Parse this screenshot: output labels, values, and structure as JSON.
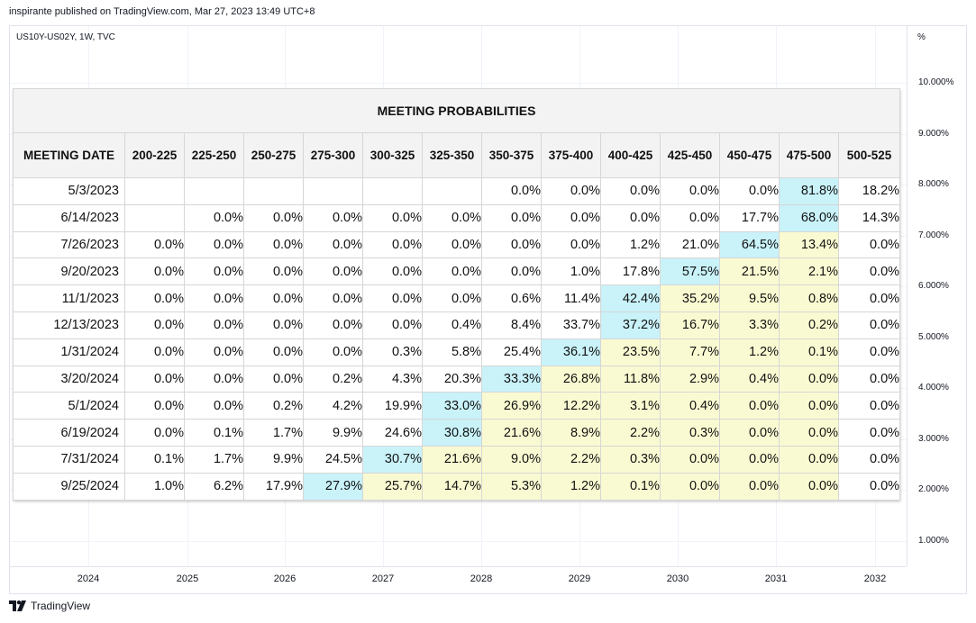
{
  "header": {
    "published_text": "inspirante published on TradingView.com, Mar 27, 2023 13:49 UTC+8"
  },
  "chart": {
    "symbol_text": "US10Y-US02Y, 1W, TVC",
    "y_unit": "%",
    "y_ticks": [
      "10.000%",
      "9.000%",
      "8.000%",
      "7.000%",
      "6.000%",
      "5.000%",
      "4.000%",
      "3.000%",
      "2.000%",
      "1.000%"
    ],
    "x_ticks": [
      "2024",
      "2025",
      "2026",
      "2027",
      "2028",
      "2029",
      "2030",
      "2031",
      "2032"
    ]
  },
  "footer": {
    "logo_text": "TradingView"
  },
  "table": {
    "title": "MEETING PROBABILITIES",
    "first_header": "MEETING DATE",
    "rate_headers": [
      "200-225",
      "225-250",
      "250-275",
      "275-300",
      "300-325",
      "325-350",
      "350-375",
      "375-400",
      "400-425",
      "425-450",
      "450-475",
      "475-500",
      "500-525"
    ],
    "colors": {
      "highest": "#c9f2f9",
      "secondary": "#fafad2"
    },
    "rows": [
      {
        "date": "5/3/2023",
        "values": [
          "",
          "",
          "",
          "",
          "",
          "",
          "0.0%",
          "0.0%",
          "0.0%",
          "0.0%",
          "0.0%",
          "81.8%",
          "18.2%"
        ],
        "shade": [
          "",
          "",
          "",
          "",
          "",
          "",
          "",
          "",
          "",
          "",
          "",
          "hi",
          ""
        ]
      },
      {
        "date": "6/14/2023",
        "values": [
          "",
          "0.0%",
          "0.0%",
          "0.0%",
          "0.0%",
          "0.0%",
          "0.0%",
          "0.0%",
          "0.0%",
          "0.0%",
          "17.7%",
          "68.0%",
          "14.3%"
        ],
        "shade": [
          "",
          "",
          "",
          "",
          "",
          "",
          "",
          "",
          "",
          "",
          "",
          "hi",
          ""
        ]
      },
      {
        "date": "7/26/2023",
        "values": [
          "0.0%",
          "0.0%",
          "0.0%",
          "0.0%",
          "0.0%",
          "0.0%",
          "0.0%",
          "0.0%",
          "1.2%",
          "21.0%",
          "64.5%",
          "13.4%",
          "0.0%"
        ],
        "shade": [
          "",
          "",
          "",
          "",
          "",
          "",
          "",
          "",
          "",
          "",
          "hi",
          "lo",
          ""
        ]
      },
      {
        "date": "9/20/2023",
        "values": [
          "0.0%",
          "0.0%",
          "0.0%",
          "0.0%",
          "0.0%",
          "0.0%",
          "0.0%",
          "1.0%",
          "17.8%",
          "57.5%",
          "21.5%",
          "2.1%",
          "0.0%"
        ],
        "shade": [
          "",
          "",
          "",
          "",
          "",
          "",
          "",
          "",
          "",
          "hi",
          "lo",
          "lo",
          ""
        ]
      },
      {
        "date": "11/1/2023",
        "values": [
          "0.0%",
          "0.0%",
          "0.0%",
          "0.0%",
          "0.0%",
          "0.0%",
          "0.6%",
          "11.4%",
          "42.4%",
          "35.2%",
          "9.5%",
          "0.8%",
          "0.0%"
        ],
        "shade": [
          "",
          "",
          "",
          "",
          "",
          "",
          "",
          "",
          "hi",
          "lo",
          "lo",
          "lo",
          ""
        ]
      },
      {
        "date": "12/13/2023",
        "values": [
          "0.0%",
          "0.0%",
          "0.0%",
          "0.0%",
          "0.0%",
          "0.4%",
          "8.4%",
          "33.7%",
          "37.2%",
          "16.7%",
          "3.3%",
          "0.2%",
          "0.0%"
        ],
        "shade": [
          "",
          "",
          "",
          "",
          "",
          "",
          "",
          "",
          "hi",
          "lo",
          "lo",
          "lo",
          ""
        ]
      },
      {
        "date": "1/31/2024",
        "values": [
          "0.0%",
          "0.0%",
          "0.0%",
          "0.0%",
          "0.3%",
          "5.8%",
          "25.4%",
          "36.1%",
          "23.5%",
          "7.7%",
          "1.2%",
          "0.1%",
          "0.0%"
        ],
        "shade": [
          "",
          "",
          "",
          "",
          "",
          "",
          "",
          "hi",
          "lo",
          "lo",
          "lo",
          "lo",
          ""
        ]
      },
      {
        "date": "3/20/2024",
        "values": [
          "0.0%",
          "0.0%",
          "0.0%",
          "0.2%",
          "4.3%",
          "20.3%",
          "33.3%",
          "26.8%",
          "11.8%",
          "2.9%",
          "0.4%",
          "0.0%",
          "0.0%"
        ],
        "shade": [
          "",
          "",
          "",
          "",
          "",
          "",
          "hi",
          "lo",
          "lo",
          "lo",
          "lo",
          "lo",
          ""
        ]
      },
      {
        "date": "5/1/2024",
        "values": [
          "0.0%",
          "0.0%",
          "0.2%",
          "4.2%",
          "19.9%",
          "33.0%",
          "26.9%",
          "12.2%",
          "3.1%",
          "0.4%",
          "0.0%",
          "0.0%",
          "0.0%"
        ],
        "shade": [
          "",
          "",
          "",
          "",
          "",
          "hi",
          "lo",
          "lo",
          "lo",
          "lo",
          "lo",
          "lo",
          ""
        ]
      },
      {
        "date": "6/19/2024",
        "values": [
          "0.0%",
          "0.1%",
          "1.7%",
          "9.9%",
          "24.6%",
          "30.8%",
          "21.6%",
          "8.9%",
          "2.2%",
          "0.3%",
          "0.0%",
          "0.0%",
          "0.0%"
        ],
        "shade": [
          "",
          "",
          "",
          "",
          "",
          "hi",
          "lo",
          "lo",
          "lo",
          "lo",
          "lo",
          "lo",
          ""
        ]
      },
      {
        "date": "7/31/2024",
        "values": [
          "0.1%",
          "1.7%",
          "9.9%",
          "24.5%",
          "30.7%",
          "21.6%",
          "9.0%",
          "2.2%",
          "0.3%",
          "0.0%",
          "0.0%",
          "0.0%",
          "0.0%"
        ],
        "shade": [
          "",
          "",
          "",
          "",
          "hi",
          "lo",
          "lo",
          "lo",
          "lo",
          "lo",
          "lo",
          "lo",
          ""
        ]
      },
      {
        "date": "9/25/2024",
        "values": [
          "1.0%",
          "6.2%",
          "17.9%",
          "27.9%",
          "25.7%",
          "14.7%",
          "5.3%",
          "1.2%",
          "0.1%",
          "0.0%",
          "0.0%",
          "0.0%",
          "0.0%"
        ],
        "shade": [
          "",
          "",
          "",
          "hi",
          "lo",
          "lo",
          "lo",
          "lo",
          "lo",
          "lo",
          "lo",
          "lo",
          ""
        ]
      }
    ]
  }
}
